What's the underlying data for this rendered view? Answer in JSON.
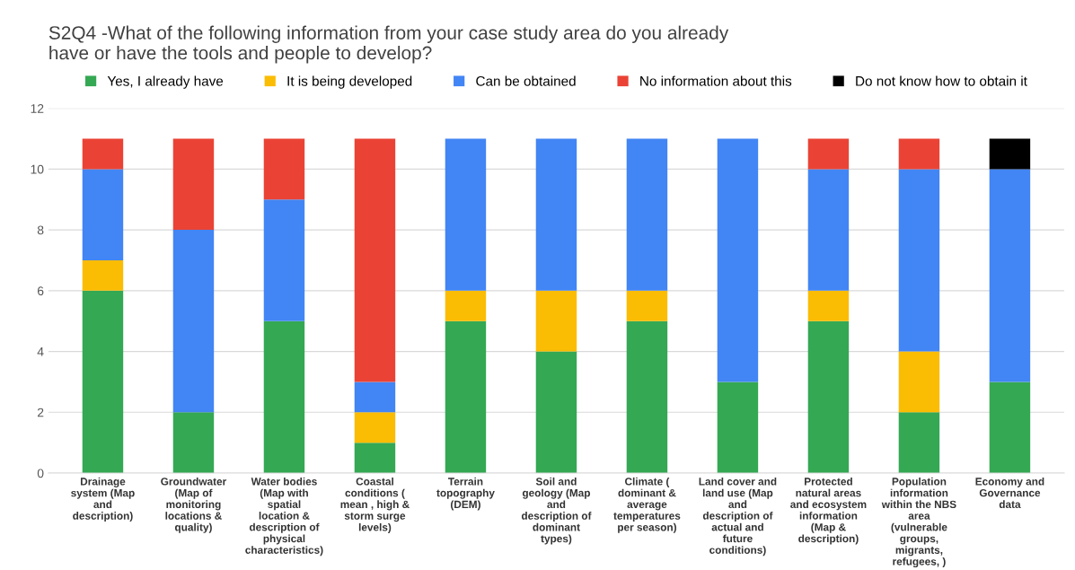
{
  "chart_data": {
    "type": "bar",
    "stacked": true,
    "title": "S2Q4 -What of the following information from your case study area do you already have or have the tools and people to develop?",
    "categories": [
      "Drainage system (Map and description)",
      "Groundwater (Map of monitoring locations & quality)",
      "Water bodies (Map with spatial location & description of physical characteristics)",
      "Coastal conditions ( mean , high & storm surge levels)",
      "Terrain topography (DEM)",
      "Soil and geology (Map and description of dominant types)",
      "Climate ( dominant & average temperatures per season)",
      "Land cover and land use (Map and description of actual and future conditions)",
      "Protected natural areas and ecosystem information (Map & description)",
      "Population information within the NBS area (vulnerable groups, migrants, refugees, )",
      "Economy and Governance data"
    ],
    "series": [
      {
        "name": "Yes, I already have",
        "color": "#34a853",
        "values": [
          6,
          2,
          5,
          1,
          5,
          4,
          5,
          3,
          5,
          2,
          3
        ]
      },
      {
        "name": "It is being developed",
        "color": "#fbbc04",
        "values": [
          1,
          0,
          0,
          1,
          1,
          2,
          1,
          0,
          1,
          2,
          0
        ]
      },
      {
        "name": "Can be obtained",
        "color": "#4285f4",
        "values": [
          3,
          6,
          4,
          1,
          5,
          5,
          5,
          8,
          4,
          6,
          7
        ]
      },
      {
        "name": "No information about this",
        "color": "#ea4335",
        "values": [
          1,
          3,
          2,
          8,
          0,
          0,
          0,
          0,
          1,
          1,
          0
        ]
      },
      {
        "name": "Do not know how to obtain it",
        "color": "#000000",
        "values": [
          0,
          0,
          0,
          0,
          0,
          0,
          0,
          0,
          0,
          0,
          1
        ]
      }
    ],
    "ylim": [
      0,
      12
    ],
    "yticks": [
      0,
      2,
      4,
      6,
      8,
      10,
      12
    ],
    "grid": "y",
    "legend": "top"
  }
}
